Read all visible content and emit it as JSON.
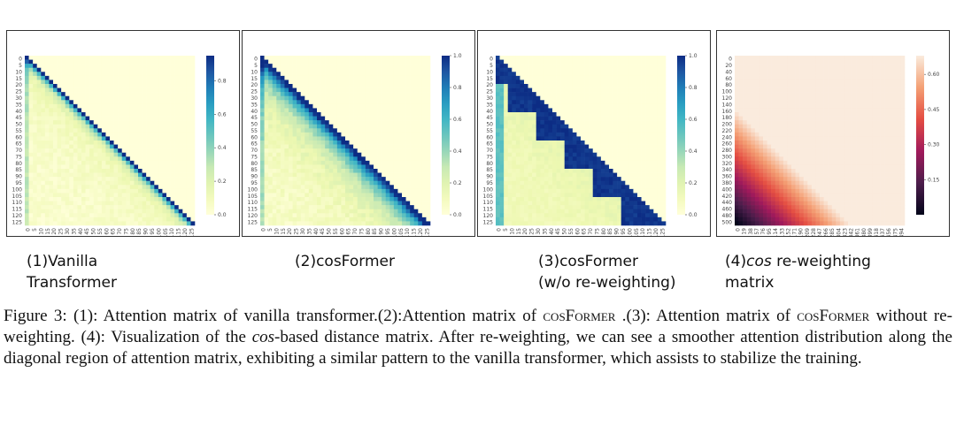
{
  "panels": [
    {
      "id": "vanilla",
      "colormap": "YlGnBu",
      "ytick_labels": [
        "0",
        "5",
        "10",
        "15",
        "20",
        "25",
        "30",
        "35",
        "40",
        "45",
        "50",
        "55",
        "60",
        "65",
        "70",
        "75",
        "80",
        "85",
        "90",
        "95",
        "100",
        "105",
        "110",
        "115",
        "120",
        "125"
      ],
      "xtick_labels": [
        "0",
        "5",
        "10",
        "15",
        "20",
        "25",
        "30",
        "35",
        "40",
        "45",
        "50",
        "55",
        "60",
        "65",
        "70",
        "75",
        "80",
        "85",
        "90",
        "95",
        "100",
        "105",
        "110",
        "115",
        "120",
        "125"
      ],
      "colorbar_ticks": [
        "0.8",
        "0.6",
        "0.4",
        "0.2",
        "0.0"
      ],
      "caption_line1": "(1)Vanilla",
      "caption_line2": "Transformer"
    },
    {
      "id": "cosformer",
      "colormap": "YlGnBu",
      "ytick_labels": [
        "0",
        "5",
        "10",
        "15",
        "20",
        "25",
        "30",
        "35",
        "40",
        "45",
        "50",
        "55",
        "60",
        "65",
        "70",
        "75",
        "80",
        "85",
        "90",
        "95",
        "100",
        "105",
        "110",
        "115",
        "120",
        "125"
      ],
      "xtick_labels": [
        "0",
        "5",
        "10",
        "15",
        "20",
        "25",
        "30",
        "35",
        "40",
        "45",
        "50",
        "55",
        "60",
        "65",
        "70",
        "75",
        "80",
        "85",
        "90",
        "95",
        "100",
        "105",
        "110",
        "115",
        "120",
        "125"
      ],
      "colorbar_ticks": [
        "1.0",
        "0.8",
        "0.6",
        "0.4",
        "0.2",
        "0.0"
      ],
      "caption_line1": "(2)cosFormer",
      "caption_line2": ""
    },
    {
      "id": "cosformer-no-reweight",
      "colormap": "YlGnBu",
      "ytick_labels": [
        "0",
        "5",
        "10",
        "15",
        "20",
        "25",
        "30",
        "35",
        "40",
        "45",
        "50",
        "55",
        "60",
        "65",
        "70",
        "75",
        "80",
        "85",
        "90",
        "95",
        "100",
        "105",
        "110",
        "115",
        "120",
        "125"
      ],
      "xtick_labels": [
        "0",
        "5",
        "10",
        "15",
        "20",
        "25",
        "30",
        "35",
        "40",
        "45",
        "50",
        "55",
        "60",
        "65",
        "70",
        "75",
        "80",
        "85",
        "90",
        "95",
        "100",
        "105",
        "110",
        "115",
        "120",
        "125"
      ],
      "colorbar_ticks": [
        "1.0",
        "0.8",
        "0.6",
        "0.4",
        "0.2",
        "0.0"
      ],
      "caption_line1": "(3)cosFormer",
      "caption_line2": "(w/o re-weighting)"
    },
    {
      "id": "cos-matrix",
      "colormap": "rocket",
      "ytick_labels": [
        "0",
        "20",
        "40",
        "60",
        "80",
        "100",
        "120",
        "140",
        "160",
        "180",
        "200",
        "220",
        "240",
        "260",
        "280",
        "300",
        "320",
        "340",
        "360",
        "380",
        "400",
        "420",
        "440",
        "460",
        "480",
        "500"
      ],
      "xtick_labels": [
        "0",
        "19",
        "38",
        "57",
        "76",
        "95",
        "114",
        "133",
        "152",
        "171",
        "190",
        "209",
        "228",
        "247",
        "266",
        "285",
        "304",
        "323",
        "342",
        "361",
        "380",
        "399",
        "418",
        "437",
        "456",
        "475",
        "494"
      ],
      "colorbar_ticks": [
        "0.60",
        "0.45",
        "0.30",
        "0.15"
      ],
      "caption_line1": "(4)",
      "caption_italic": "cos",
      "caption_line1_rest": " re-weighting",
      "caption_line2": "matrix"
    }
  ],
  "figure_caption": {
    "label": "Figure 3:",
    "p1": " (1): Attention matrix of vanilla transformer.(2):Attention matrix of ",
    "cos1": "cosFormer",
    "p2": " .(3): Attention matrix of ",
    "cos2": "cosFormer",
    "p3": " without re-weighting. (4): Visualization of the ",
    "italic": "cos",
    "p4": "-based distance matrix. After re-weighting, we can see a smoother attention distribution along the diagonal region of attention matrix, exhibiting a similar pattern to the vanilla transformer, which assists to stabilize the training."
  }
}
